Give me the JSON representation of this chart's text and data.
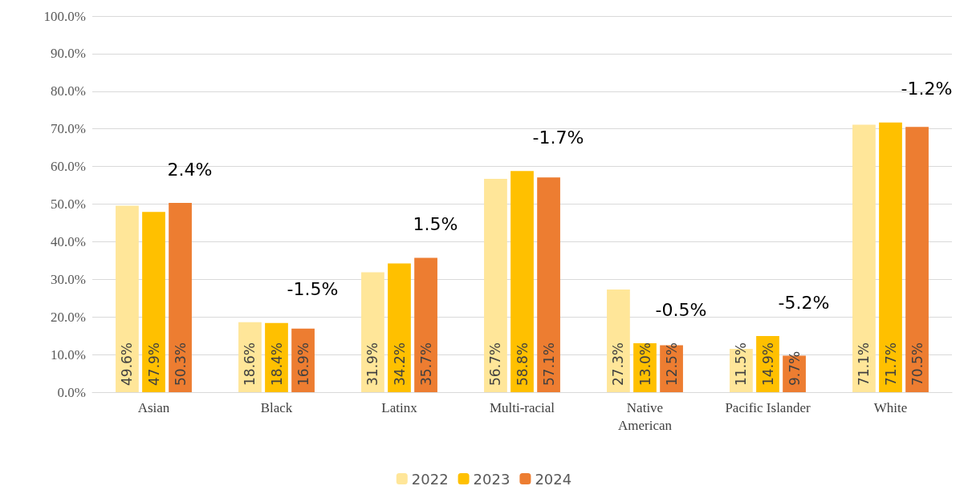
{
  "chart_data": {
    "type": "bar",
    "categories": [
      "Asian",
      "Black",
      "Latinx",
      "Multi-racial",
      "Native\nAmerican",
      "Pacific Islander",
      "White"
    ],
    "series": [
      {
        "name": "2022",
        "color": "#ffe699",
        "values": [
          49.6,
          18.6,
          31.9,
          56.7,
          27.3,
          11.5,
          71.1
        ],
        "value_labels": [
          "49.6%",
          "18.6%",
          "31.9%",
          "56.7%",
          "27.3%",
          "11.5%",
          "71.1%"
        ]
      },
      {
        "name": "2023",
        "color": "#ffc000",
        "values": [
          47.9,
          18.4,
          34.2,
          58.8,
          13.0,
          14.9,
          71.7
        ],
        "value_labels": [
          "47.9%",
          "18.4%",
          "34.2%",
          "58.8%",
          "13.0%",
          "14.9%",
          "71.7%"
        ]
      },
      {
        "name": "2024",
        "color": "#ed7d31",
        "values": [
          50.3,
          16.9,
          35.7,
          57.1,
          12.5,
          9.7,
          70.5
        ],
        "value_labels": [
          "50.3%",
          "16.9%",
          "35.7%",
          "57.1%",
          "12.5%",
          "9.7%",
          "70.5%"
        ]
      }
    ],
    "ylim": [
      0,
      100
    ],
    "yticks": [
      {
        "value": 0,
        "label": "0.0%"
      },
      {
        "value": 10,
        "label": "10.0%"
      },
      {
        "value": 20,
        "label": "20.0%"
      },
      {
        "value": 30,
        "label": "30.0%"
      },
      {
        "value": 40,
        "label": "40.0%"
      },
      {
        "value": 50,
        "label": "50.0%"
      },
      {
        "value": 60,
        "label": "60.0%"
      },
      {
        "value": 70,
        "label": "70.0%"
      },
      {
        "value": 80,
        "label": "80.0%"
      },
      {
        "value": 90,
        "label": "90.0%"
      },
      {
        "value": 100,
        "label": "100.0%"
      }
    ],
    "annotations": [
      "2.4%",
      "-1.5%",
      "1.5%",
      "-1.7%",
      "-0.5%",
      "-5.2%",
      "-1.2%"
    ],
    "grid": "y",
    "legend": "bottom"
  }
}
